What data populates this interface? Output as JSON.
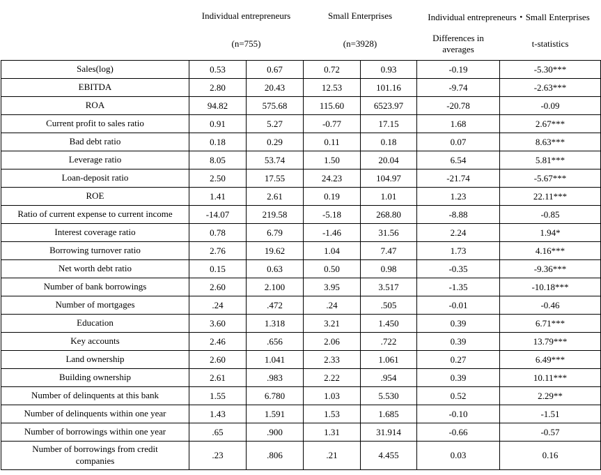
{
  "table": {
    "header": {
      "group1": "Individual entrepreneurs",
      "group1_n": "(n=755)",
      "group2": "Small Enterprises",
      "group2_n": "(n=3928)",
      "group3": "Individual entrepreneurs・Small Enterprises",
      "col_diff": "Differences in averages",
      "col_tstat": "t-statistics"
    },
    "rows": [
      {
        "label": "Sales(log)",
        "values": [
          "0.53",
          "0.67",
          "0.72",
          "0.93",
          "-0.19",
          "-5.30***"
        ]
      },
      {
        "label": "EBITDA",
        "values": [
          "2.80",
          "20.43",
          "12.53",
          "101.16",
          "-9.74",
          "-2.63***"
        ]
      },
      {
        "label": "ROA",
        "values": [
          "94.82",
          "575.68",
          "115.60",
          "6523.97",
          "-20.78",
          "-0.09"
        ]
      },
      {
        "label": "Current profit to sales ratio",
        "values": [
          "0.91",
          "5.27",
          "-0.77",
          "17.15",
          "1.68",
          "2.67***"
        ]
      },
      {
        "label": "Bad debt ratio",
        "values": [
          "0.18",
          "0.29",
          "0.11",
          "0.18",
          "0.07",
          "8.63***"
        ]
      },
      {
        "label": "Leverage ratio",
        "values": [
          "8.05",
          "53.74",
          "1.50",
          "20.04",
          "6.54",
          "5.81***"
        ]
      },
      {
        "label": "Loan-deposit ratio",
        "values": [
          "2.50",
          "17.55",
          "24.23",
          "104.97",
          "-21.74",
          "-5.67***"
        ]
      },
      {
        "label": "ROE",
        "values": [
          "1.41",
          "2.61",
          "0.19",
          "1.01",
          "1.23",
          "22.11***"
        ]
      },
      {
        "label": "Ratio of current expense to current income",
        "values": [
          "-14.07",
          "219.58",
          "-5.18",
          "268.80",
          "-8.88",
          "-0.85"
        ]
      },
      {
        "label": "Interest coverage ratio",
        "values": [
          "0.78",
          "6.79",
          "-1.46",
          "31.56",
          "2.24",
          "1.94*"
        ]
      },
      {
        "label": "Borrowing turnover ratio",
        "values": [
          "2.76",
          "19.62",
          "1.04",
          "7.47",
          "1.73",
          "4.16***"
        ]
      },
      {
        "label": "Net worth debt ratio",
        "values": [
          "0.15",
          "0.63",
          "0.50",
          "0.98",
          "-0.35",
          "-9.36***"
        ]
      },
      {
        "label": "Number of bank borrowings",
        "values": [
          "2.60",
          "2.100",
          "3.95",
          "3.517",
          "-1.35",
          "-10.18***"
        ]
      },
      {
        "label": "Number of mortgages",
        "values": [
          ".24",
          ".472",
          ".24",
          ".505",
          "-0.01",
          "-0.46"
        ]
      },
      {
        "label": "Education",
        "values": [
          "3.60",
          "1.318",
          "3.21",
          "1.450",
          "0.39",
          "6.71***"
        ]
      },
      {
        "label": "Key accounts",
        "values": [
          "2.46",
          ".656",
          "2.06",
          ".722",
          "0.39",
          "13.79***"
        ]
      },
      {
        "label": "Land ownership",
        "values": [
          "2.60",
          "1.041",
          "2.33",
          "1.061",
          "0.27",
          "6.49***"
        ]
      },
      {
        "label": "Building ownership",
        "values": [
          "2.61",
          ".983",
          "2.22",
          ".954",
          "0.39",
          "10.11***"
        ]
      },
      {
        "label": "Number of delinquents at this bank",
        "values": [
          "1.55",
          "6.780",
          "1.03",
          "5.530",
          "0.52",
          "2.29**"
        ]
      },
      {
        "label": "Number of delinquents within one year",
        "values": [
          "1.43",
          "1.591",
          "1.53",
          "1.685",
          "-0.10",
          "-1.51"
        ]
      },
      {
        "label": "Number of borrowings within one year",
        "values": [
          ".65",
          ".900",
          "1.31",
          "31.914",
          "-0.66",
          "-0.57"
        ]
      },
      {
        "label": "Number of borrowings from credit\ncompanies",
        "values": [
          ".23",
          ".806",
          ".21",
          "4.455",
          "0.03",
          "0.16"
        ]
      }
    ]
  }
}
